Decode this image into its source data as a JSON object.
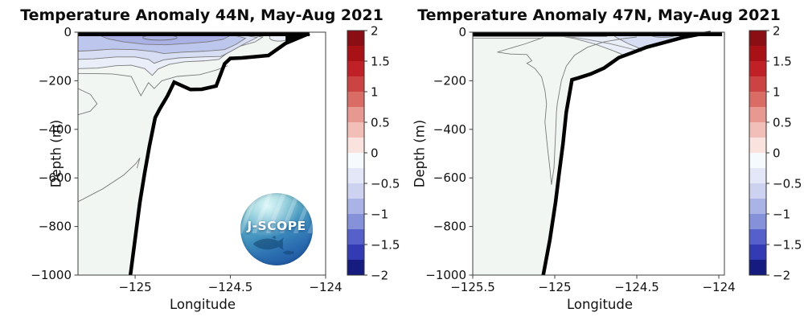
{
  "logo": {
    "text": "J-SCOPE"
  },
  "colorbar": {
    "range": [
      -2,
      2
    ],
    "step": 0.25,
    "tick_labels": [
      "2",
      "1.5",
      "1",
      "0.5",
      "0",
      "-0.5",
      "-1",
      "-1.5",
      "-2"
    ],
    "segment_colors_top_to_bottom": [
      "#8a0e13",
      "#a81217",
      "#bf2126",
      "#cc4343",
      "#da6c66",
      "#e79890",
      "#f2bfb8",
      "#fae3de",
      "#f7fafd",
      "#e3e7f8",
      "#ccd2f0",
      "#aab3e6",
      "#8591d9",
      "#5560cb",
      "#333bb4",
      "#161c7f"
    ]
  },
  "chart_data": [
    {
      "type": "contour",
      "title": "Temperature Anomaly 44N, May-Aug 2021",
      "xlabel": "Longitude",
      "ylabel": "Depth (m)",
      "xlim": [
        -125.3,
        -124.0
      ],
      "ylim": [
        -1000,
        0
      ],
      "x_ticks": [
        -125,
        -124.5,
        -124
      ],
      "x_tick_labels": [
        "−125",
        "−124.5",
        "−124"
      ],
      "y_ticks": [
        0,
        -200,
        -400,
        -600,
        -800,
        -1000
      ],
      "y_tick_labels": [
        "0",
        "−200",
        "−400",
        "−600",
        "−800",
        "−1000"
      ],
      "filled_contour_levels_visible": [
        -0.25,
        -0.5,
        -0.75,
        -1.0
      ],
      "ocean_fill": "#f1f6f3",
      "surface_bar": [
        -125.3,
        -124.085
      ],
      "coast_wedge": [
        [
          -124.21,
          0
        ],
        [
          -124.085,
          0
        ],
        [
          -124.085,
          -12
        ],
        [
          -124.21,
          -46
        ]
      ],
      "bathymetry": [
        [
          -124.085,
          -5
        ],
        [
          -124.21,
          -46
        ],
        [
          -124.3,
          -96
        ],
        [
          -124.44,
          -106
        ],
        [
          -124.5,
          -108
        ],
        [
          -124.53,
          -130
        ],
        [
          -124.575,
          -222
        ],
        [
          -124.65,
          -235
        ],
        [
          -124.71,
          -236
        ],
        [
          -124.795,
          -206
        ],
        [
          -124.83,
          -262
        ],
        [
          -124.87,
          -315
        ],
        [
          -124.895,
          -352
        ],
        [
          -124.925,
          -470
        ],
        [
          -124.95,
          -580
        ],
        [
          -124.975,
          -700
        ],
        [
          -125.0,
          -850
        ],
        [
          -125.025,
          -1000
        ]
      ],
      "bands": [
        {
          "level": -0.25,
          "color": "#e9eef9",
          "points": [
            [
              -125.3,
              -5
            ],
            [
              -124.8,
              -4
            ],
            [
              -124.45,
              -5
            ],
            [
              -124.33,
              -20
            ],
            [
              -124.37,
              -40
            ],
            [
              -124.45,
              -58
            ],
            [
              -124.52,
              -88
            ],
            [
              -124.56,
              -112
            ],
            [
              -124.63,
              -118
            ],
            [
              -124.74,
              -122
            ],
            [
              -124.82,
              -132
            ],
            [
              -124.88,
              -152
            ],
            [
              -124.91,
              -178
            ],
            [
              -124.95,
              -150
            ],
            [
              -125.02,
              -136
            ],
            [
              -125.1,
              -138
            ],
            [
              -125.2,
              -148
            ],
            [
              -125.3,
              -150
            ]
          ]
        },
        {
          "level": -0.5,
          "color": "#d7def4",
          "points": [
            [
              -125.3,
              -7
            ],
            [
              -124.8,
              -6
            ],
            [
              -124.47,
              -7
            ],
            [
              -124.36,
              -22
            ],
            [
              -124.42,
              -45
            ],
            [
              -124.5,
              -80
            ],
            [
              -124.55,
              -100
            ],
            [
              -124.65,
              -102
            ],
            [
              -124.77,
              -106
            ],
            [
              -124.85,
              -114
            ],
            [
              -124.9,
              -128
            ],
            [
              -124.93,
              -112
            ],
            [
              -125.0,
              -102
            ],
            [
              -125.1,
              -102
            ],
            [
              -125.22,
              -110
            ],
            [
              -125.3,
              -112
            ]
          ]
        },
        {
          "level": -0.75,
          "color": "#bdc6ec",
          "points": [
            [
              -125.3,
              -9
            ],
            [
              -124.85,
              -8
            ],
            [
              -124.5,
              -9
            ],
            [
              -124.42,
              -25
            ],
            [
              -124.47,
              -50
            ],
            [
              -124.53,
              -72
            ],
            [
              -124.63,
              -78
            ],
            [
              -124.75,
              -82
            ],
            [
              -124.85,
              -88
            ],
            [
              -124.9,
              -80
            ],
            [
              -125.0,
              -72
            ],
            [
              -125.12,
              -70
            ],
            [
              -125.24,
              -76
            ],
            [
              -125.3,
              -78
            ]
          ]
        },
        {
          "level": -1.0,
          "color": "#a9b1e5",
          "points": [
            [
              -125.19,
              -12
            ],
            [
              -125.0,
              -9
            ],
            [
              -124.8,
              -10
            ],
            [
              -124.6,
              -12
            ],
            [
              -124.5,
              -14
            ],
            [
              -124.54,
              -30
            ],
            [
              -124.62,
              -40
            ],
            [
              -124.72,
              -46
            ],
            [
              -124.84,
              -52
            ],
            [
              -124.95,
              -50
            ],
            [
              -125.06,
              -40
            ],
            [
              -125.14,
              -28
            ]
          ]
        }
      ],
      "ellipses": [
        {
          "c": [
            -124.87,
            -22
          ],
          "rx_deg": 0.09,
          "ry_m": 11,
          "fill": "none",
          "stroke": "#6a6a6a"
        },
        {
          "c": [
            -124.245,
            -22
          ],
          "rx_deg": 0.05,
          "ry_m": 15,
          "fill": "#e9eef9",
          "stroke": "#7a7a7a"
        }
      ],
      "contour_lines": [
        {
          "color": "#7a7a7a",
          "points": [
            [
              -125.3,
              -170
            ],
            [
              -125.12,
              -172
            ],
            [
              -125.02,
              -182
            ],
            [
              -124.97,
              -262
            ],
            [
              -124.93,
              -208
            ],
            [
              -124.9,
              -232
            ],
            [
              -124.86,
              -200
            ],
            [
              -124.78,
              -182
            ],
            [
              -124.66,
              -175
            ],
            [
              -124.57,
              -155
            ],
            [
              -124.515,
              -138
            ]
          ]
        },
        {
          "color": "#7a7a7a",
          "points": [
            [
              -125.3,
              -232
            ],
            [
              -125.235,
              -256
            ],
            [
              -125.2,
              -295
            ],
            [
              -125.235,
              -325
            ],
            [
              -125.3,
              -340
            ]
          ]
        },
        {
          "color": "#7a7a7a",
          "points": [
            [
              -125.3,
              -698
            ],
            [
              -125.17,
              -645
            ],
            [
              -125.06,
              -588
            ],
            [
              -124.995,
              -540
            ],
            [
              -124.975,
              -518
            ],
            [
              -124.99,
              -560
            ]
          ]
        }
      ]
    },
    {
      "type": "contour",
      "title": "Temperature Anomaly 47N, May-Aug 2021",
      "xlabel": "Longitude",
      "ylabel": "Depth (m)",
      "xlim": [
        -125.5,
        -123.966
      ],
      "ylim": [
        -1000,
        0
      ],
      "x_ticks": [
        -125.5,
        -125,
        -124.5,
        -124
      ],
      "x_tick_labels": [
        "−125.5",
        "−125",
        "−124.5",
        "−124"
      ],
      "y_ticks": [
        0,
        -200,
        -400,
        -600,
        -800,
        -1000
      ],
      "y_tick_labels": [
        "0",
        "−200",
        "−400",
        "−600",
        "−800",
        "−1000"
      ],
      "filled_contour_levels_visible": [
        -0.25,
        -0.5,
        -0.75
      ],
      "ocean_fill": "#f1f6f3",
      "surface_bar": [
        -125.5,
        -123.98
      ],
      "coast_wedge": null,
      "bathymetry": [
        [
          -124.05,
          -2
        ],
        [
          -124.13,
          -10
        ],
        [
          -124.22,
          -22
        ],
        [
          -124.33,
          -42
        ],
        [
          -124.44,
          -62
        ],
        [
          -124.53,
          -85
        ],
        [
          -124.61,
          -105
        ],
        [
          -124.7,
          -148
        ],
        [
          -124.78,
          -172
        ],
        [
          -124.855,
          -188
        ],
        [
          -124.895,
          -196
        ],
        [
          -124.93,
          -330
        ],
        [
          -124.95,
          -460
        ],
        [
          -124.975,
          -590
        ],
        [
          -124.995,
          -700
        ],
        [
          -125.03,
          -855
        ],
        [
          -125.07,
          -1000
        ]
      ],
      "bands": [
        {
          "level": -0.25,
          "color": "#e9eef9",
          "points": [
            [
              -125.04,
              -6
            ],
            [
              -124.6,
              -4
            ],
            [
              -124.07,
              -3
            ],
            [
              -124.16,
              -14
            ],
            [
              -124.28,
              -34
            ],
            [
              -124.4,
              -56
            ],
            [
              -124.5,
              -78
            ],
            [
              -124.565,
              -98
            ],
            [
              -124.65,
              -75
            ],
            [
              -124.76,
              -48
            ],
            [
              -124.88,
              -26
            ],
            [
              -125.0,
              -12
            ]
          ]
        },
        {
          "level": -0.5,
          "color": "#d7def4",
          "points": [
            [
              -124.66,
              -6
            ],
            [
              -124.35,
              -4
            ],
            [
              -124.13,
              -5
            ],
            [
              -124.22,
              -20
            ],
            [
              -124.33,
              -40
            ],
            [
              -124.42,
              -58
            ],
            [
              -124.47,
              -70
            ],
            [
              -124.55,
              -48
            ],
            [
              -124.62,
              -24
            ]
          ]
        }
      ],
      "ellipses": [
        {
          "c": [
            -124.34,
            -12
          ],
          "rx_deg": 0.075,
          "ry_m": 9,
          "fill": "#bdc6ec",
          "stroke": "#7a7a7a"
        },
        {
          "c": [
            -124.31,
            -10
          ],
          "rx_deg": 0.035,
          "ry_m": 5,
          "fill": "#a9b1e5",
          "stroke": "#6a6a6a"
        }
      ],
      "contour_lines": [
        {
          "color": "#7a7a7a",
          "points": [
            [
              -125.07,
              -22
            ],
            [
              -125.18,
              -48
            ],
            [
              -125.28,
              -68
            ],
            [
              -125.35,
              -82
            ],
            [
              -125.27,
              -90
            ],
            [
              -125.17,
              -92
            ],
            [
              -125.14,
              -118
            ],
            [
              -125.17,
              -128
            ],
            [
              -125.12,
              -150
            ],
            [
              -125.08,
              -185
            ],
            [
              -125.06,
              -240
            ],
            [
              -125.05,
              -295
            ],
            [
              -125.06,
              -370
            ],
            [
              -125.045,
              -470
            ],
            [
              -125.03,
              -560
            ],
            [
              -125.02,
              -628
            ],
            [
              -125.005,
              -560
            ],
            [
              -124.995,
              -420
            ],
            [
              -124.99,
              -330
            ],
            [
              -124.985,
              -295
            ],
            [
              -124.96,
              -200
            ],
            [
              -124.93,
              -140
            ],
            [
              -124.88,
              -95
            ],
            [
              -124.8,
              -62
            ],
            [
              -124.7,
              -40
            ],
            [
              -124.58,
              -26
            ],
            [
              -124.5,
              -20
            ]
          ]
        },
        {
          "color": "#8a8a8a",
          "points": [
            [
              -124.94,
              -16
            ],
            [
              -124.8,
              -30
            ],
            [
              -124.66,
              -48
            ],
            [
              -124.55,
              -66
            ],
            [
              -124.47,
              -80
            ]
          ]
        },
        {
          "color": "#808080",
          "points": [
            [
              -125.5,
              -18
            ],
            [
              -124.68,
              -18
            ]
          ]
        },
        {
          "color": "#9a9a9a",
          "points": [
            [
              -125.5,
              -25
            ],
            [
              -125.08,
              -25
            ]
          ]
        }
      ]
    }
  ]
}
